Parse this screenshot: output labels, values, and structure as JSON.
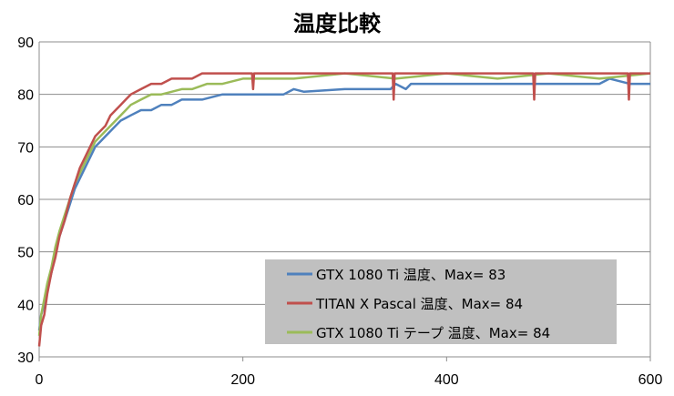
{
  "chart_data": {
    "type": "line",
    "title": "温度比較",
    "xlabel": "",
    "ylabel": "",
    "xlim": [
      0,
      600
    ],
    "ylim": [
      30,
      90
    ],
    "xticks": [
      0,
      200,
      400,
      600
    ],
    "yticks": [
      30,
      40,
      50,
      60,
      70,
      80,
      90
    ],
    "grid": "horizontal",
    "legend_position": "bottom-right",
    "series": [
      {
        "name": "GTX 1080 Ti 温度、Max= 83",
        "color": "#4f81bd",
        "x": [
          0,
          2,
          5,
          8,
          12,
          16,
          20,
          25,
          30,
          35,
          40,
          45,
          50,
          55,
          60,
          65,
          70,
          75,
          80,
          85,
          90,
          100,
          110,
          120,
          130,
          140,
          160,
          180,
          200,
          240,
          250,
          260,
          300,
          340,
          345,
          350,
          360,
          365,
          380,
          400,
          450,
          500,
          550,
          560,
          580,
          590,
          600
        ],
        "y": [
          35,
          38,
          40,
          43,
          46,
          50,
          53,
          56,
          59,
          62,
          64,
          66,
          68,
          70,
          71,
          72,
          73,
          74,
          75,
          75.5,
          76,
          77,
          77,
          78,
          78,
          79,
          79,
          80,
          80,
          80,
          81,
          80.5,
          81,
          81,
          81,
          82,
          81,
          82,
          82,
          82,
          82,
          82,
          82,
          83,
          82,
          82,
          82
        ]
      },
      {
        "name": "TITAN X Pascal 温度、Max= 84",
        "color": "#c0504d",
        "x": [
          0,
          2,
          5,
          8,
          12,
          16,
          20,
          25,
          30,
          35,
          40,
          45,
          50,
          55,
          60,
          65,
          70,
          75,
          80,
          85,
          90,
          100,
          110,
          120,
          130,
          150,
          160,
          180,
          200,
          209,
          210,
          211,
          230,
          300,
          347,
          348,
          349,
          380,
          485,
          486,
          487,
          520,
          578,
          579,
          580,
          600
        ],
        "y": [
          32,
          36,
          38,
          42,
          46,
          49,
          53,
          56,
          60,
          63,
          66,
          68,
          70,
          72,
          73,
          74,
          76,
          77,
          78,
          79,
          80,
          81,
          82,
          82,
          83,
          83,
          84,
          84,
          84,
          84,
          81,
          84,
          84,
          84,
          84,
          79,
          84,
          84,
          84,
          79,
          84,
          84,
          84,
          79,
          84,
          84
        ]
      },
      {
        "name": "GTX 1080 Ti テープ 温度、Max= 84",
        "color": "#9bbb59",
        "x": [
          0,
          2,
          5,
          8,
          12,
          16,
          20,
          25,
          30,
          35,
          40,
          45,
          50,
          55,
          60,
          65,
          70,
          75,
          80,
          85,
          90,
          100,
          110,
          120,
          140,
          150,
          165,
          180,
          200,
          220,
          250,
          300,
          350,
          400,
          450,
          500,
          550,
          600
        ],
        "y": [
          34,
          38,
          41,
          44,
          47,
          51,
          54,
          57,
          60,
          63,
          65,
          67,
          69,
          71,
          72,
          73,
          74,
          75,
          76,
          77,
          78,
          79,
          80,
          80,
          81,
          81,
          82,
          82,
          83,
          83,
          83,
          84,
          83,
          84,
          83,
          84,
          83,
          84
        ]
      }
    ]
  }
}
